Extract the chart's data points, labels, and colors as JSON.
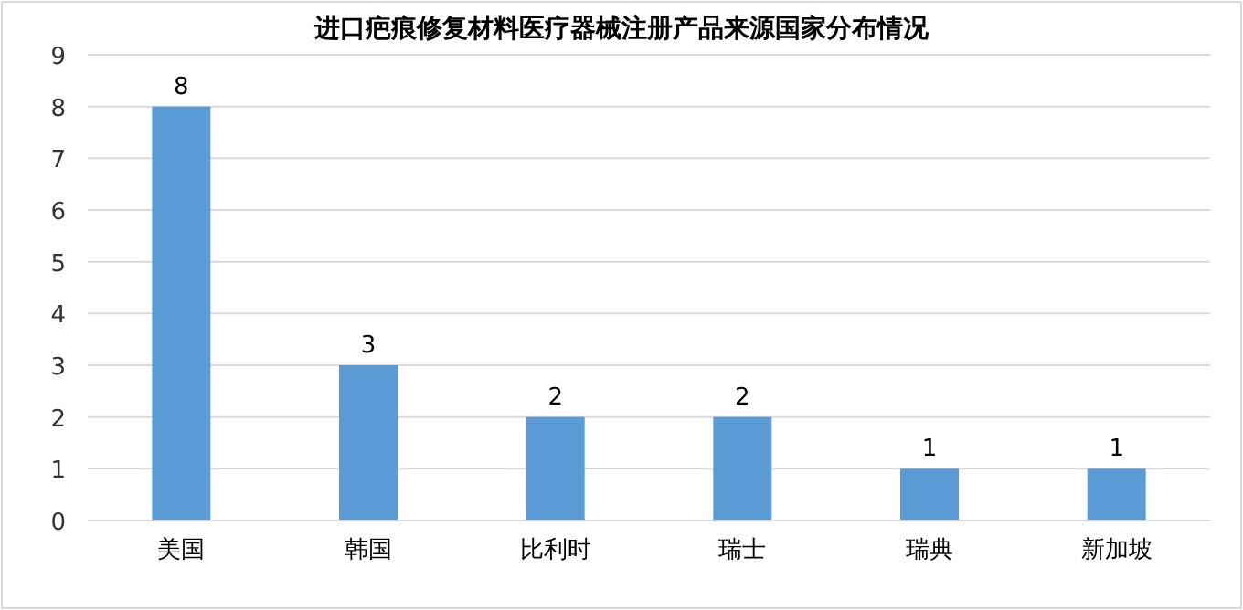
{
  "chart_data": {
    "type": "bar",
    "title": "进口疤痕修复材料医疗器械注册产品来源国家分布情况",
    "categories": [
      "美国",
      "韩国",
      "比利时",
      "瑞士",
      "瑞典",
      "新加坡"
    ],
    "values": [
      8,
      3,
      2,
      2,
      1,
      1
    ],
    "color": "#5b9bd5",
    "ylim": [
      0,
      9
    ],
    "yticks": [
      0,
      1,
      2,
      3,
      4,
      5,
      6,
      7,
      8,
      9
    ],
    "grid": "y",
    "data_labels": true
  }
}
